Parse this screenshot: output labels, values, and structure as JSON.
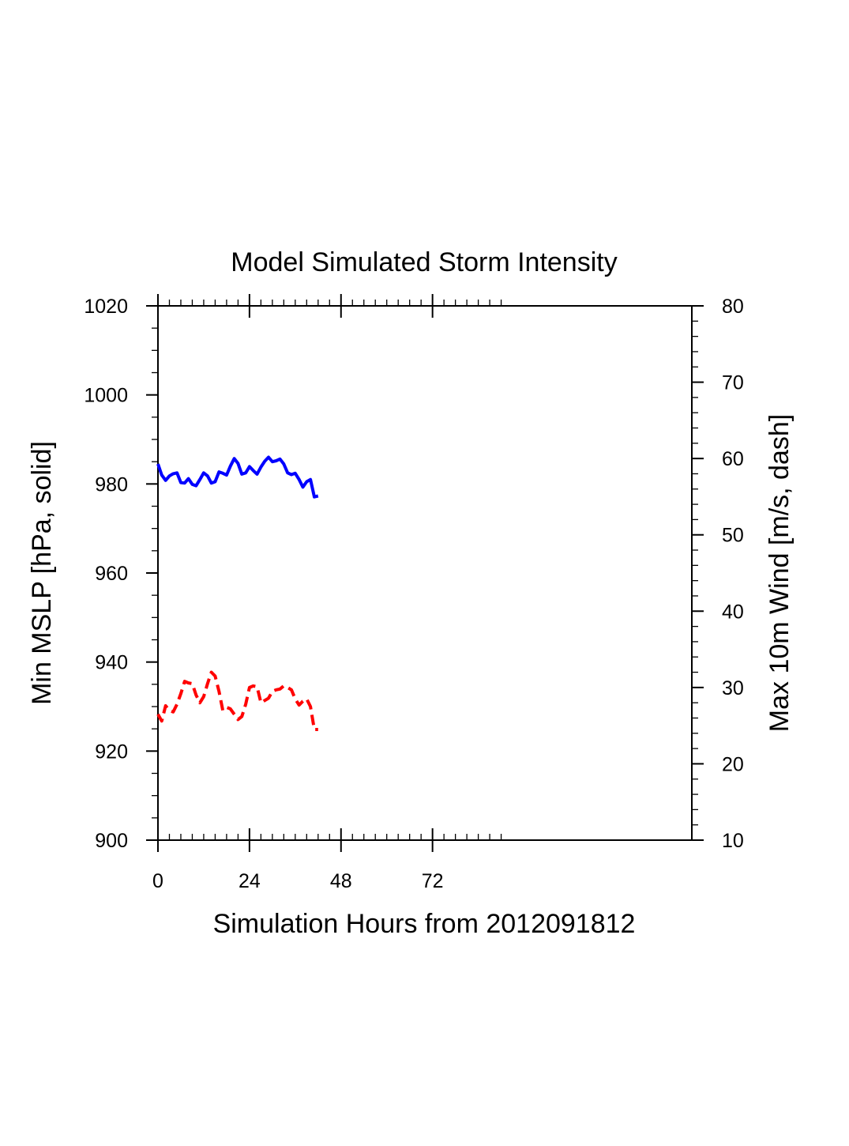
{
  "chart_data": {
    "type": "line",
    "title": "Model Simulated Storm Intensity",
    "xlabel": "Simulation Hours from 2012091812",
    "ylabel_left": "Min MSLP  [hPa, solid]",
    "ylabel_right": "Max 10m Wind  [m/s, dash]",
    "xlim": [
      0,
      140
    ],
    "xticks": [
      0,
      24,
      48,
      72
    ],
    "ylim_left": [
      900,
      1020
    ],
    "yticks_left": [
      900,
      920,
      940,
      960,
      980,
      1000,
      1020
    ],
    "ylim_right": [
      10,
      80
    ],
    "yticks_right": [
      10,
      20,
      30,
      40,
      50,
      60,
      70,
      80
    ],
    "series": [
      {
        "name": "Min MSLP",
        "axis": "left",
        "style": "solid",
        "color": "#0000ff",
        "x": [
          0,
          1,
          2,
          3,
          4,
          5,
          6,
          7,
          8,
          9,
          10,
          11,
          12,
          13,
          14,
          15,
          16,
          17,
          18,
          19,
          20,
          21,
          22,
          23,
          24,
          25,
          26,
          27,
          28,
          29,
          30,
          31,
          32,
          33,
          34,
          35,
          36,
          37,
          38,
          39,
          40,
          41,
          42
        ],
        "values": [
          984.5,
          982,
          980.8,
          981.8,
          982.3,
          982.5,
          980.3,
          980.2,
          981.2,
          979.9,
          979.6,
          981,
          982.5,
          981.8,
          980.2,
          980.5,
          982.7,
          982.4,
          982,
          984,
          985.7,
          984.6,
          982.2,
          982.5,
          983.9,
          983,
          982.2,
          983.8,
          985.1,
          986,
          985,
          985.2,
          985.6,
          984.5,
          982.5,
          982.1,
          982.4,
          981,
          979.3,
          980.5,
          981,
          977.1,
          977.3
        ]
      },
      {
        "name": "Max 10m Wind",
        "axis": "right",
        "style": "dashed",
        "color": "#ff0000",
        "x": [
          0,
          1,
          2,
          3,
          4,
          5,
          6,
          7,
          8,
          9,
          10,
          11,
          12,
          13,
          14,
          15,
          16,
          17,
          18,
          19,
          20,
          21,
          22,
          23,
          24,
          25,
          26,
          27,
          28,
          29,
          30,
          31,
          32,
          33,
          34,
          35,
          36,
          37,
          38,
          39,
          40,
          41,
          42
        ],
        "values": [
          26.5,
          25.6,
          27.6,
          27,
          26.8,
          27.8,
          29.2,
          30.8,
          30.6,
          30.5,
          29,
          28,
          28.8,
          30.5,
          32,
          31.5,
          29.5,
          27,
          27.4,
          27.2,
          26.5,
          25.8,
          26.2,
          27.8,
          30,
          30.2,
          30.1,
          28,
          28.3,
          28.6,
          29.5,
          29.7,
          29.8,
          30.2,
          30,
          29.7,
          28.5,
          27.7,
          28.2,
          28.5,
          27.5,
          24.5,
          24.5
        ]
      }
    ]
  }
}
